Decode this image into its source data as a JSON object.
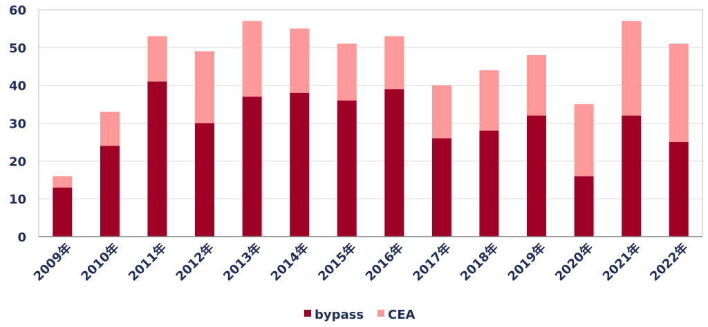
{
  "chart_data": {
    "type": "bar",
    "stacked": true,
    "categories": [
      "2009年",
      "2010年",
      "2011年",
      "2012年",
      "2013年",
      "2014年",
      "2015年",
      "2016年",
      "2017年",
      "2018年",
      "2019年",
      "2020年",
      "2021年",
      "2022年"
    ],
    "series": [
      {
        "name": "bypass",
        "color": "#a00026",
        "values": [
          13,
          24,
          41,
          30,
          37,
          38,
          36,
          39,
          26,
          28,
          32,
          16,
          32,
          25
        ]
      },
      {
        "name": "CEA",
        "color": "#ff9999",
        "values": [
          3,
          9,
          12,
          19,
          20,
          17,
          15,
          14,
          14,
          16,
          16,
          19,
          25,
          26
        ]
      }
    ],
    "y_ticks": [
      "0",
      "10",
      "20",
      "30",
      "40",
      "50",
      "60"
    ],
    "ylim": [
      0,
      60
    ],
    "grid": true,
    "legend_position": "bottom",
    "title": "",
    "xlabel": "",
    "ylabel": ""
  }
}
